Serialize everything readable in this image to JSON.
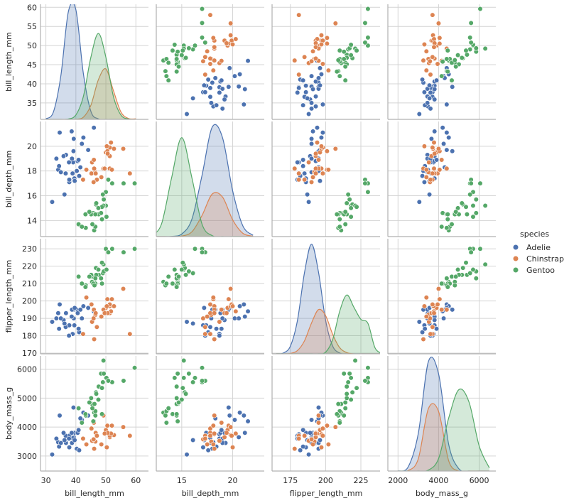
{
  "chart_data": {
    "type": "pairplot",
    "legend_title": "species",
    "legend": "right",
    "grid": true,
    "variables": [
      {
        "label": "bill_length_mm",
        "xlim": [
          28.2,
          64.2
        ],
        "ylim": [
          30.7,
          60.8
        ],
        "xticks": [
          30,
          40,
          50,
          60
        ],
        "yticks": [
          35,
          40,
          45,
          50,
          55,
          60
        ],
        "kde_x": [
          30,
          32.5,
          35,
          37.5,
          40,
          42.5,
          45,
          47.5,
          50,
          52.5,
          55,
          57.5,
          60
        ]
      },
      {
        "label": "bill_depth_mm",
        "xlim": [
          12.5,
          23.1
        ],
        "ylim": [
          12.7,
          22.0
        ],
        "xticks": [
          15,
          20
        ],
        "yticks": [
          14,
          16,
          18,
          20
        ],
        "kde_x": [
          12,
          13,
          14,
          15,
          16,
          17,
          18,
          19,
          20,
          21,
          22
        ]
      },
      {
        "label": "flipper_length_mm",
        "xlim": [
          162,
          238.6
        ],
        "ylim": [
          169.6,
          235.8
        ],
        "xticks": [
          175,
          200,
          225
        ],
        "yticks": [
          170,
          180,
          190,
          200,
          210,
          220,
          230
        ],
        "kde_x": [
          165,
          170,
          175,
          180,
          185,
          190,
          195,
          200,
          205,
          210,
          215,
          220,
          225,
          230,
          235,
          240
        ]
      },
      {
        "label": "body_mass_g",
        "xlim": [
          1500,
          6820
        ],
        "ylim": [
          2480,
          6460
        ],
        "xticks": [
          2000,
          4000,
          6000
        ],
        "yticks": [
          3000,
          4000,
          5000,
          6000
        ],
        "kde_x": [
          2000,
          2500,
          3000,
          3500,
          4000,
          4500,
          5000,
          5500,
          6000,
          6500
        ]
      }
    ],
    "series": [
      {
        "name": "Adelie",
        "color": "#4c72b0",
        "values": [
          [
            39.1,
            39.5,
            40.3,
            36.7,
            39.3,
            38.9,
            39.2,
            34.1,
            42.0,
            37.8,
            37.8,
            41.1,
            38.6,
            34.6,
            36.6,
            38.7,
            42.5,
            34.4,
            46.0,
            37.7,
            35.9,
            32.1,
            40.6,
            36.2,
            44.1,
            35.0,
            41.5,
            33.5,
            39.6,
            40.9
          ],
          [
            18.7,
            17.4,
            18.0,
            19.3,
            20.6,
            17.8,
            19.6,
            18.1,
            20.2,
            17.1,
            17.3,
            17.6,
            21.2,
            21.1,
            17.8,
            19.0,
            20.7,
            18.4,
            21.5,
            18.7,
            19.2,
            15.5,
            18.8,
            16.1,
            19.7,
            17.9,
            18.3,
            19.0,
            17.2,
            18.9
          ],
          [
            181,
            186,
            195,
            193,
            190,
            181,
            195,
            193,
            190,
            186,
            180,
            182,
            191,
            198,
            185,
            195,
            197,
            184,
            194,
            180,
            189,
            188,
            193,
            187,
            196,
            190,
            195,
            190,
            196,
            184
          ],
          [
            3750,
            3800,
            3250,
            3450,
            3650,
            3625,
            4675,
            3475,
            4250,
            3300,
            3700,
            3200,
            3800,
            4400,
            3700,
            3450,
            4500,
            3325,
            4200,
            3600,
            3800,
            3050,
            3800,
            3550,
            4400,
            3450,
            4300,
            3600,
            3550,
            3900
          ]
        ],
        "kde": [
          [
            0.0003,
            0.004,
            0.024,
            0.059,
            0.06,
            0.025,
            0.0044,
            0.0003,
            0,
            0,
            0,
            0,
            0
          ],
          [
            0,
            0,
            0.0003,
            0.0034,
            0.023,
            0.081,
            0.144,
            0.13,
            0.06,
            0.014,
            0.0017
          ],
          [
            0,
            0.0002,
            0.0019,
            0.0082,
            0.02,
            0.027,
            0.02,
            0.0082,
            0.0019,
            0.0002,
            0,
            0,
            0,
            0,
            0,
            0
          ],
          [
            0,
            1.3e-05,
            0.00012,
            0.00035,
            0.00031,
            8.4e-05,
            7e-06,
            0,
            0,
            0
          ]
        ]
      },
      {
        "name": "Chinstrap",
        "color": "#dd8452",
        "values": [
          [
            46.5,
            50.0,
            51.3,
            45.4,
            52.7,
            45.2,
            46.1,
            51.3,
            46.0,
            51.3,
            46.6,
            51.7,
            47.0,
            52.0,
            45.9,
            50.5,
            50.3,
            58.0,
            49.2,
            42.4,
            48.5,
            50.6,
            55.8,
            43.5,
            49.6
          ],
          [
            17.9,
            19.5,
            19.2,
            18.7,
            19.8,
            17.8,
            18.2,
            18.2,
            18.9,
            19.9,
            17.8,
            20.3,
            17.3,
            18.1,
            17.1,
            19.6,
            20.0,
            17.8,
            18.2,
            17.3,
            17.5,
            19.4,
            19.8,
            18.1,
            18.2
          ],
          [
            192,
            196,
            193,
            188,
            197,
            198,
            178,
            197,
            195,
            198,
            193,
            194,
            185,
            201,
            190,
            201,
            197,
            181,
            195,
            181,
            191,
            193,
            207,
            202,
            193
          ],
          [
            3500,
            3900,
            3650,
            3525,
            3725,
            3950,
            3250,
            3750,
            4150,
            3700,
            3800,
            3775,
            3700,
            4050,
            3575,
            4050,
            3300,
            3700,
            4400,
            3600,
            3400,
            3800,
            4000,
            3400,
            3775
          ]
        ],
        "kde": [
          [
            0,
            0,
            0,
            0,
            0.0001,
            0.0012,
            0.0077,
            0.0217,
            0.0276,
            0.0158,
            0.0041,
            0.0005,
            0.0003
          ],
          [
            0,
            0,
            0,
            0.0007,
            0.0063,
            0.028,
            0.056,
            0.052,
            0.022,
            0.0043,
            0.0004
          ],
          [
            0,
            0,
            0.0001,
            0.0008,
            0.0032,
            0.0076,
            0.0109,
            0.0094,
            0.0048,
            0.0015,
            0.0003,
            0,
            0,
            0,
            0,
            0
          ],
          [
            0,
            1.5e-06,
            3.9e-05,
            0.0002,
            0.00019,
            3.2e-05,
            0,
            0,
            0,
            0
          ]
        ]
      },
      {
        "name": "Gentoo",
        "color": "#55a868",
        "values": [
          [
            46.1,
            50.0,
            48.7,
            50.0,
            47.6,
            46.5,
            45.4,
            46.7,
            43.3,
            46.8,
            40.9,
            49.0,
            45.5,
            48.4,
            45.8,
            49.3,
            42.0,
            49.2,
            46.2,
            48.7,
            50.2,
            45.1,
            46.5,
            59.6,
            47.5,
            52.1,
            44.5,
            50.8,
            43.2,
            55.9
          ],
          [
            13.2,
            16.3,
            14.1,
            15.2,
            14.5,
            13.5,
            14.6,
            15.3,
            13.4,
            15.4,
            13.7,
            16.1,
            13.7,
            14.6,
            14.6,
            15.7,
            13.5,
            15.2,
            14.5,
            15.1,
            14.3,
            14.5,
            14.5,
            17.0,
            15.0,
            17.0,
            14.7,
            17.3,
            14.5,
            17.0
          ],
          [
            211,
            230,
            210,
            218,
            215,
            210,
            211,
            219,
            209,
            215,
            214,
            216,
            214,
            213,
            210,
            217,
            210,
            221,
            209,
            222,
            218,
            215,
            213,
            230,
            218,
            230,
            214,
            228,
            208,
            228
          ],
          [
            4500,
            5700,
            4450,
            5700,
            5400,
            4550,
            4800,
            5200,
            4400,
            5150,
            4650,
            5550,
            4650,
            5850,
            4200,
            5850,
            4150,
            6300,
            4800,
            5350,
            5700,
            5000,
            4400,
            6050,
            4950,
            5550,
            4850,
            5600,
            4450,
            5600
          ]
        ],
        "kde": [
          [
            0,
            0,
            0,
            0.0002,
            0.0024,
            0.0126,
            0.034,
            0.047,
            0.034,
            0.0126,
            0.0024,
            0.0002,
            0
          ],
          [
            0.0012,
            0.016,
            0.077,
            0.13,
            0.077,
            0.016,
            0.0012,
            0,
            0,
            0,
            0
          ],
          [
            0,
            0,
            0,
            0,
            0,
            0,
            0,
            0.0004,
            0.0035,
            0.0105,
            0.0145,
            0.0115,
            0.0085,
            0.0075,
            0.0015,
            0.0001
          ],
          [
            0,
            0,
            0,
            3e-06,
            4e-05,
            0.00017,
            0.00026,
            0.00022,
            8e-05,
            1e-05
          ]
        ]
      }
    ]
  }
}
